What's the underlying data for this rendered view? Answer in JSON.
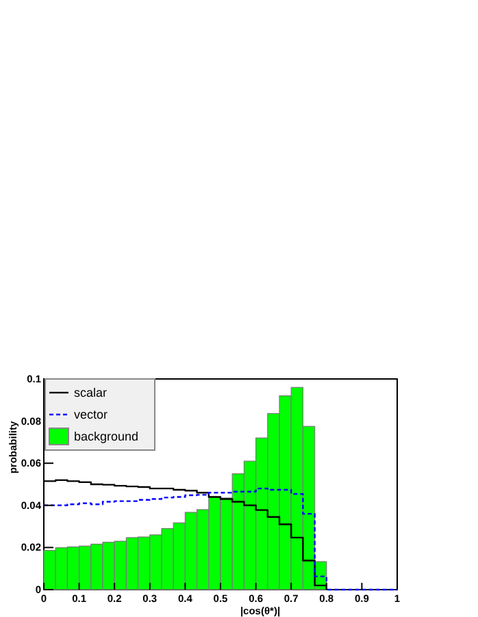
{
  "chart_data": {
    "type": "histogram",
    "xlabel": "|cos(θ*)|",
    "ylabel": "probability",
    "bins": [
      0,
      0.0333,
      0.0667,
      0.1,
      0.1333,
      0.1667,
      0.2,
      0.2333,
      0.2667,
      0.3,
      0.3333,
      0.3667,
      0.4,
      0.4333,
      0.4667,
      0.5,
      0.5333,
      0.5667,
      0.6,
      0.6333,
      0.6667,
      0.7,
      0.7333,
      0.7667,
      0.8,
      0.8333,
      0.8667,
      0.9,
      0.9333,
      0.9667,
      1
    ],
    "series": [
      {
        "name": "scalar",
        "type": "step",
        "color": "#000000",
        "line_style": "solid",
        "x": [
          0,
          0.0333,
          0.0667,
          0.1,
          0.1333,
          0.1667,
          0.2,
          0.2333,
          0.2667,
          0.3,
          0.3333,
          0.3667,
          0.4,
          0.4333,
          0.4667,
          0.5,
          0.5333,
          0.5667,
          0.6,
          0.6333,
          0.6667,
          0.7,
          0.7333,
          0.7667,
          0.8
        ],
        "values": [
          0.0515,
          0.052,
          0.0515,
          0.051,
          0.05,
          0.0498,
          0.0493,
          0.049,
          0.0487,
          0.048,
          0.048,
          0.0474,
          0.047,
          0.046,
          0.044,
          0.043,
          0.0417,
          0.04,
          0.0378,
          0.0345,
          0.031,
          0.0247,
          0.0138,
          0.002,
          0
        ]
      },
      {
        "name": "vector",
        "type": "step",
        "color": "#0000ff",
        "line_style": "dashed",
        "x": [
          0,
          0.0333,
          0.0667,
          0.1,
          0.1333,
          0.1667,
          0.2,
          0.2333,
          0.2667,
          0.3,
          0.3333,
          0.3667,
          0.4,
          0.4333,
          0.4667,
          0.5,
          0.5333,
          0.5667,
          0.6,
          0.6333,
          0.6667,
          0.7,
          0.7333,
          0.7667,
          0.8,
          0.8333,
          0.8667,
          0.9,
          0.9333,
          0.9667,
          1
        ],
        "values": [
          0.04,
          0.04,
          0.0405,
          0.041,
          0.0405,
          0.0417,
          0.042,
          0.042,
          0.0426,
          0.043,
          0.0437,
          0.044,
          0.0448,
          0.045,
          0.046,
          0.046,
          0.0465,
          0.0465,
          0.048,
          0.0474,
          0.0474,
          0.0454,
          0.036,
          0.0063,
          0,
          0,
          0,
          0,
          0,
          0,
          0
        ]
      },
      {
        "name": "background",
        "color": "#00ff00",
        "values": [
          0.0186,
          0.0199,
          0.0203,
          0.0207,
          0.0216,
          0.0225,
          0.023,
          0.0247,
          0.025,
          0.026,
          0.029,
          0.0317,
          0.0367,
          0.038,
          0.044,
          0.0435,
          0.055,
          0.061,
          0.072,
          0.0836,
          0.092,
          0.096,
          0.0775,
          0.0133,
          0,
          0,
          0,
          0,
          0,
          0
        ]
      }
    ],
    "xlim": [
      0,
      1
    ],
    "xticks": [
      0,
      0.1,
      0.2,
      0.3,
      0.4,
      0.5,
      0.6,
      0.7,
      0.8,
      0.9,
      1
    ],
    "ylim": [
      0,
      0.1
    ],
    "yticks": [
      0,
      0.02,
      0.04,
      0.06,
      0.08,
      0.1
    ],
    "legend": "top left",
    "grid": false
  }
}
